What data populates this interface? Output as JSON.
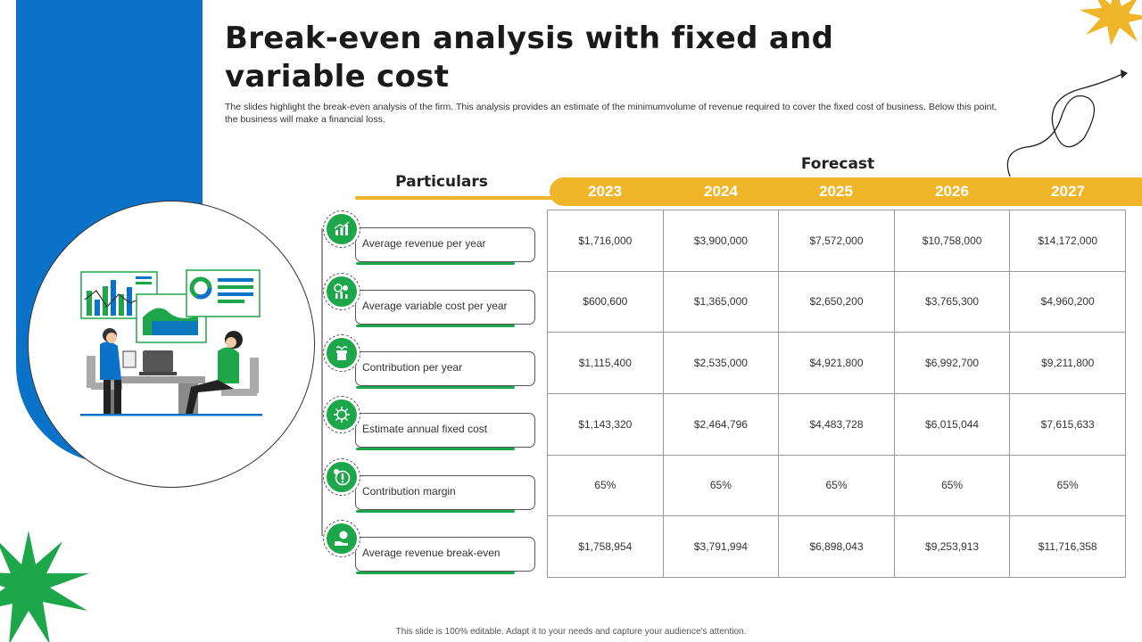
{
  "title": "Break-even analysis with fixed and variable cost",
  "subtitle": "The slides highlight the break-even analysis of the firm. This analysis provides an estimate of the minimumvolume of revenue required to cover the fixed cost of business. Below this point, the business will make a financial loss.",
  "forecast_label": "Forecast",
  "particulars_label": "Particulars",
  "years": [
    "2023",
    "2024",
    "2025",
    "2026",
    "2027"
  ],
  "rows": [
    {
      "label": "Average  revenue  per year",
      "icon": "revenue-chart-icon",
      "values": [
        "$1,716,000",
        "$3,900,000",
        "$7,572,000",
        "$10,758,000",
        "$14,172,000"
      ]
    },
    {
      "label": "Average  variable  cost per year",
      "icon": "variable-cost-icon",
      "values": [
        "$600,600",
        "$1,365,000",
        "$2,650,200",
        "$3,765,300",
        "$4,960,200"
      ]
    },
    {
      "label": "Contribution  per year",
      "icon": "contribution-hand-icon",
      "values": [
        "$1,115,400",
        "$2,535,000",
        "$4,921,800",
        "$6,992,700",
        "$9,211,800"
      ]
    },
    {
      "label": "Estimate annual  fixed cost",
      "icon": "fixed-cost-icon",
      "values": [
        "$1,143,320",
        "$2,464,796",
        "$4,483,728",
        "$6,015,044",
        "$7,615,633"
      ]
    },
    {
      "label": "Contribution  margin",
      "icon": "margin-dollar-icon",
      "values": [
        "65%",
        "65%",
        "65%",
        "65%",
        "65%"
      ]
    },
    {
      "label": "Average  revenue  break-even",
      "icon": "break-even-money-icon",
      "values": [
        "$1,758,954",
        "$3,791,994",
        "$6,898,043",
        "$9,253,913",
        "$11,716,358"
      ]
    }
  ],
  "footer": "This slide is 100% editable. Adapt it to your needs and capture your audience's attention.",
  "colors": {
    "blue": "#0a73c9",
    "yellow": "#f0b529",
    "green": "#1ea64b"
  }
}
